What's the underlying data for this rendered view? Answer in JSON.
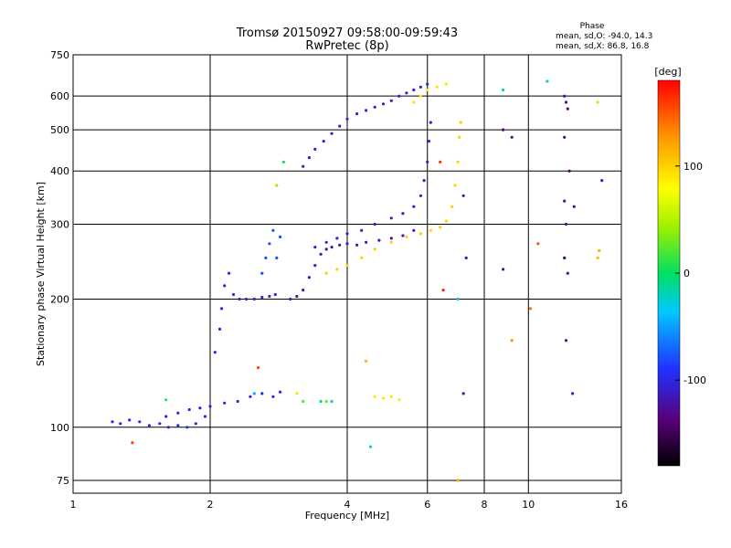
{
  "chart_data": {
    "type": "scatter",
    "title": "Tromsø 20150927 09:58:00-09:59:43",
    "subtitle": "RwPretec (8p)",
    "xlabel": "Frequency [MHz]",
    "ylabel": "Stationary phase Virtual Height [km]",
    "x_scale": "log",
    "y_scale": "log",
    "xlim": [
      1,
      16
    ],
    "ylim": [
      70,
      750
    ],
    "x_ticks": [
      1,
      2,
      4,
      6,
      8,
      10,
      16
    ],
    "x_tick_labels": [
      "1",
      "2",
      "4",
      "6",
      "8",
      "10",
      "16"
    ],
    "y_ticks": [
      75,
      100,
      200,
      300,
      400,
      500,
      600,
      750
    ],
    "y_tick_labels": [
      "75",
      "100",
      "200",
      "300",
      "400",
      "500",
      "600",
      "750"
    ],
    "grid": true,
    "stats": {
      "header": "Phase",
      "line_o": "mean, sd,O: -94.0, 14.3",
      "line_x": "mean, sd,X:  86.8, 16.8"
    },
    "colorbar": {
      "label": "[deg]",
      "range": [
        -180,
        180
      ],
      "ticks": [
        100,
        0,
        -100
      ],
      "tick_labels": [
        "100",
        "0",
        "-100"
      ]
    },
    "series": [
      {
        "points": [
          [
            1.22,
            103,
            -95
          ],
          [
            1.27,
            102,
            -95
          ],
          [
            1.33,
            104,
            -95
          ],
          [
            1.4,
            103,
            -95
          ],
          [
            1.47,
            101,
            -95
          ],
          [
            1.55,
            102,
            -95
          ],
          [
            1.62,
            100,
            -95
          ],
          [
            1.7,
            101,
            -95
          ],
          [
            1.78,
            100,
            -95
          ],
          [
            1.86,
            102,
            -95
          ],
          [
            1.95,
            106,
            -95
          ],
          [
            1.6,
            106,
            -100
          ],
          [
            1.7,
            108,
            -100
          ],
          [
            1.8,
            110,
            -100
          ],
          [
            1.9,
            111,
            -100
          ],
          [
            2.0,
            112,
            -100
          ],
          [
            2.15,
            114,
            -100
          ],
          [
            2.3,
            115,
            -100
          ],
          [
            2.45,
            118,
            -100
          ],
          [
            2.6,
            120,
            -100
          ],
          [
            2.75,
            118,
            -100
          ],
          [
            2.85,
            121,
            -100
          ],
          [
            2.05,
            150,
            -100
          ],
          [
            2.1,
            170,
            -100
          ],
          [
            2.12,
            190,
            -100
          ],
          [
            2.15,
            215,
            -100
          ],
          [
            2.2,
            230,
            -100
          ],
          [
            2.25,
            205,
            -100
          ],
          [
            2.32,
            200,
            -100
          ],
          [
            2.4,
            200,
            -100
          ],
          [
            2.5,
            200,
            -100
          ],
          [
            2.6,
            202,
            -100
          ],
          [
            2.7,
            203,
            -100
          ],
          [
            2.78,
            205,
            -100
          ],
          [
            2.6,
            230,
            -80
          ],
          [
            2.65,
            250,
            -80
          ],
          [
            2.7,
            270,
            -80
          ],
          [
            2.75,
            290,
            -80
          ],
          [
            2.8,
            250,
            -80
          ],
          [
            2.85,
            280,
            -80
          ],
          [
            3.0,
            200,
            -115
          ],
          [
            3.1,
            203,
            -115
          ],
          [
            3.2,
            210,
            -115
          ],
          [
            3.3,
            225,
            -115
          ],
          [
            3.4,
            240,
            -115
          ],
          [
            3.5,
            255,
            -115
          ],
          [
            3.6,
            262,
            -115
          ],
          [
            3.7,
            265,
            -115
          ],
          [
            3.85,
            268,
            -115
          ],
          [
            4.0,
            270,
            -115
          ],
          [
            4.2,
            268,
            -115
          ],
          [
            4.4,
            272,
            -115
          ],
          [
            4.7,
            275,
            -115
          ],
          [
            5.0,
            278,
            -115
          ],
          [
            5.3,
            282,
            -115
          ],
          [
            5.6,
            290,
            -115
          ],
          [
            3.4,
            265,
            -105
          ],
          [
            3.6,
            272,
            -105
          ],
          [
            3.8,
            278,
            -105
          ],
          [
            4.0,
            285,
            -105
          ],
          [
            4.3,
            290,
            -105
          ],
          [
            4.6,
            300,
            -105
          ],
          [
            5.0,
            310,
            -105
          ],
          [
            5.3,
            318,
            -105
          ],
          [
            5.6,
            330,
            -105
          ],
          [
            5.8,
            350,
            -105
          ],
          [
            5.9,
            380,
            -105
          ],
          [
            6.0,
            420,
            -105
          ],
          [
            6.05,
            470,
            -105
          ],
          [
            6.1,
            520,
            -105
          ],
          [
            3.2,
            410,
            -105
          ],
          [
            3.3,
            430,
            -105
          ],
          [
            3.4,
            450,
            -105
          ],
          [
            3.55,
            470,
            -105
          ],
          [
            3.7,
            490,
            -105
          ],
          [
            3.85,
            510,
            -105
          ],
          [
            4.0,
            530,
            -105
          ],
          [
            4.2,
            545,
            -105
          ],
          [
            4.4,
            555,
            -105
          ],
          [
            4.6,
            565,
            -105
          ],
          [
            4.8,
            575,
            -105
          ],
          [
            5.0,
            585,
            -105
          ],
          [
            5.2,
            600,
            -105
          ],
          [
            5.4,
            610,
            -105
          ],
          [
            5.6,
            620,
            -105
          ],
          [
            5.8,
            630,
            -105
          ],
          [
            6.0,
            640,
            -105
          ]
        ]
      },
      {
        "points": [
          [
            3.6,
            230,
            100
          ],
          [
            3.8,
            235,
            100
          ],
          [
            4.0,
            240,
            100
          ],
          [
            4.3,
            250,
            100
          ],
          [
            4.6,
            262,
            100
          ],
          [
            5.0,
            272,
            100
          ],
          [
            5.4,
            280,
            100
          ],
          [
            5.8,
            285,
            100
          ],
          [
            6.1,
            290,
            100
          ],
          [
            6.4,
            295,
            100
          ],
          [
            6.6,
            305,
            100
          ],
          [
            6.8,
            330,
            100
          ],
          [
            6.9,
            370,
            100
          ],
          [
            7.0,
            420,
            100
          ],
          [
            7.05,
            480,
            100
          ],
          [
            7.1,
            520,
            100
          ],
          [
            5.6,
            580,
            90
          ],
          [
            5.8,
            600,
            90
          ],
          [
            6.0,
            620,
            90
          ],
          [
            6.3,
            630,
            90
          ],
          [
            6.6,
            640,
            90
          ],
          [
            3.1,
            120,
            90
          ],
          [
            4.6,
            118,
            90
          ],
          [
            4.8,
            117,
            90
          ],
          [
            5.0,
            118,
            90
          ],
          [
            5.2,
            116,
            90
          ]
        ]
      },
      {
        "points": [
          [
            1.35,
            92,
            160
          ],
          [
            2.55,
            138,
            155
          ],
          [
            3.6,
            115,
            30
          ],
          [
            4.4,
            143,
            110
          ],
          [
            7.0,
            75,
            120
          ],
          [
            9.2,
            160,
            130
          ],
          [
            10.1,
            190,
            140
          ],
          [
            10.5,
            270,
            150
          ],
          [
            12.0,
            250,
            145
          ],
          [
            14.2,
            250,
            110
          ],
          [
            14.3,
            260,
            115
          ],
          [
            8.8,
            500,
            125
          ],
          [
            6.4,
            420,
            160
          ],
          [
            6.5,
            210,
            170
          ]
        ]
      },
      {
        "points": [
          [
            2.8,
            370,
            40
          ],
          [
            2.9,
            420,
            5
          ],
          [
            3.2,
            115,
            20
          ],
          [
            3.5,
            115,
            -5
          ],
          [
            3.7,
            115,
            -25
          ],
          [
            8.8,
            620,
            -20
          ],
          [
            11.0,
            650,
            -25
          ],
          [
            4.5,
            90,
            -30
          ],
          [
            7.0,
            200,
            -40
          ],
          [
            2.5,
            120,
            -45
          ],
          [
            1.6,
            116,
            10
          ],
          [
            14.2,
            580,
            55
          ]
        ]
      },
      {
        "points": [
          [
            8.8,
            500,
            -130
          ],
          [
            9.2,
            480,
            -125
          ],
          [
            12.0,
            600,
            -120
          ],
          [
            12.1,
            580,
            -120
          ],
          [
            12.2,
            560,
            -135
          ],
          [
            12.0,
            480,
            -135
          ],
          [
            12.3,
            400,
            -140
          ],
          [
            12.6,
            330,
            -130
          ],
          [
            12.0,
            340,
            -125
          ],
          [
            12.1,
            300,
            -120
          ],
          [
            12.0,
            250,
            -125
          ],
          [
            12.2,
            230,
            -120
          ],
          [
            12.1,
            160,
            -115
          ],
          [
            12.5,
            120,
            -110
          ],
          [
            7.2,
            120,
            -115
          ],
          [
            7.3,
            250,
            -115
          ],
          [
            8.8,
            235,
            -115
          ],
          [
            14.5,
            380,
            -110
          ],
          [
            7.2,
            350,
            -110
          ]
        ]
      }
    ]
  }
}
